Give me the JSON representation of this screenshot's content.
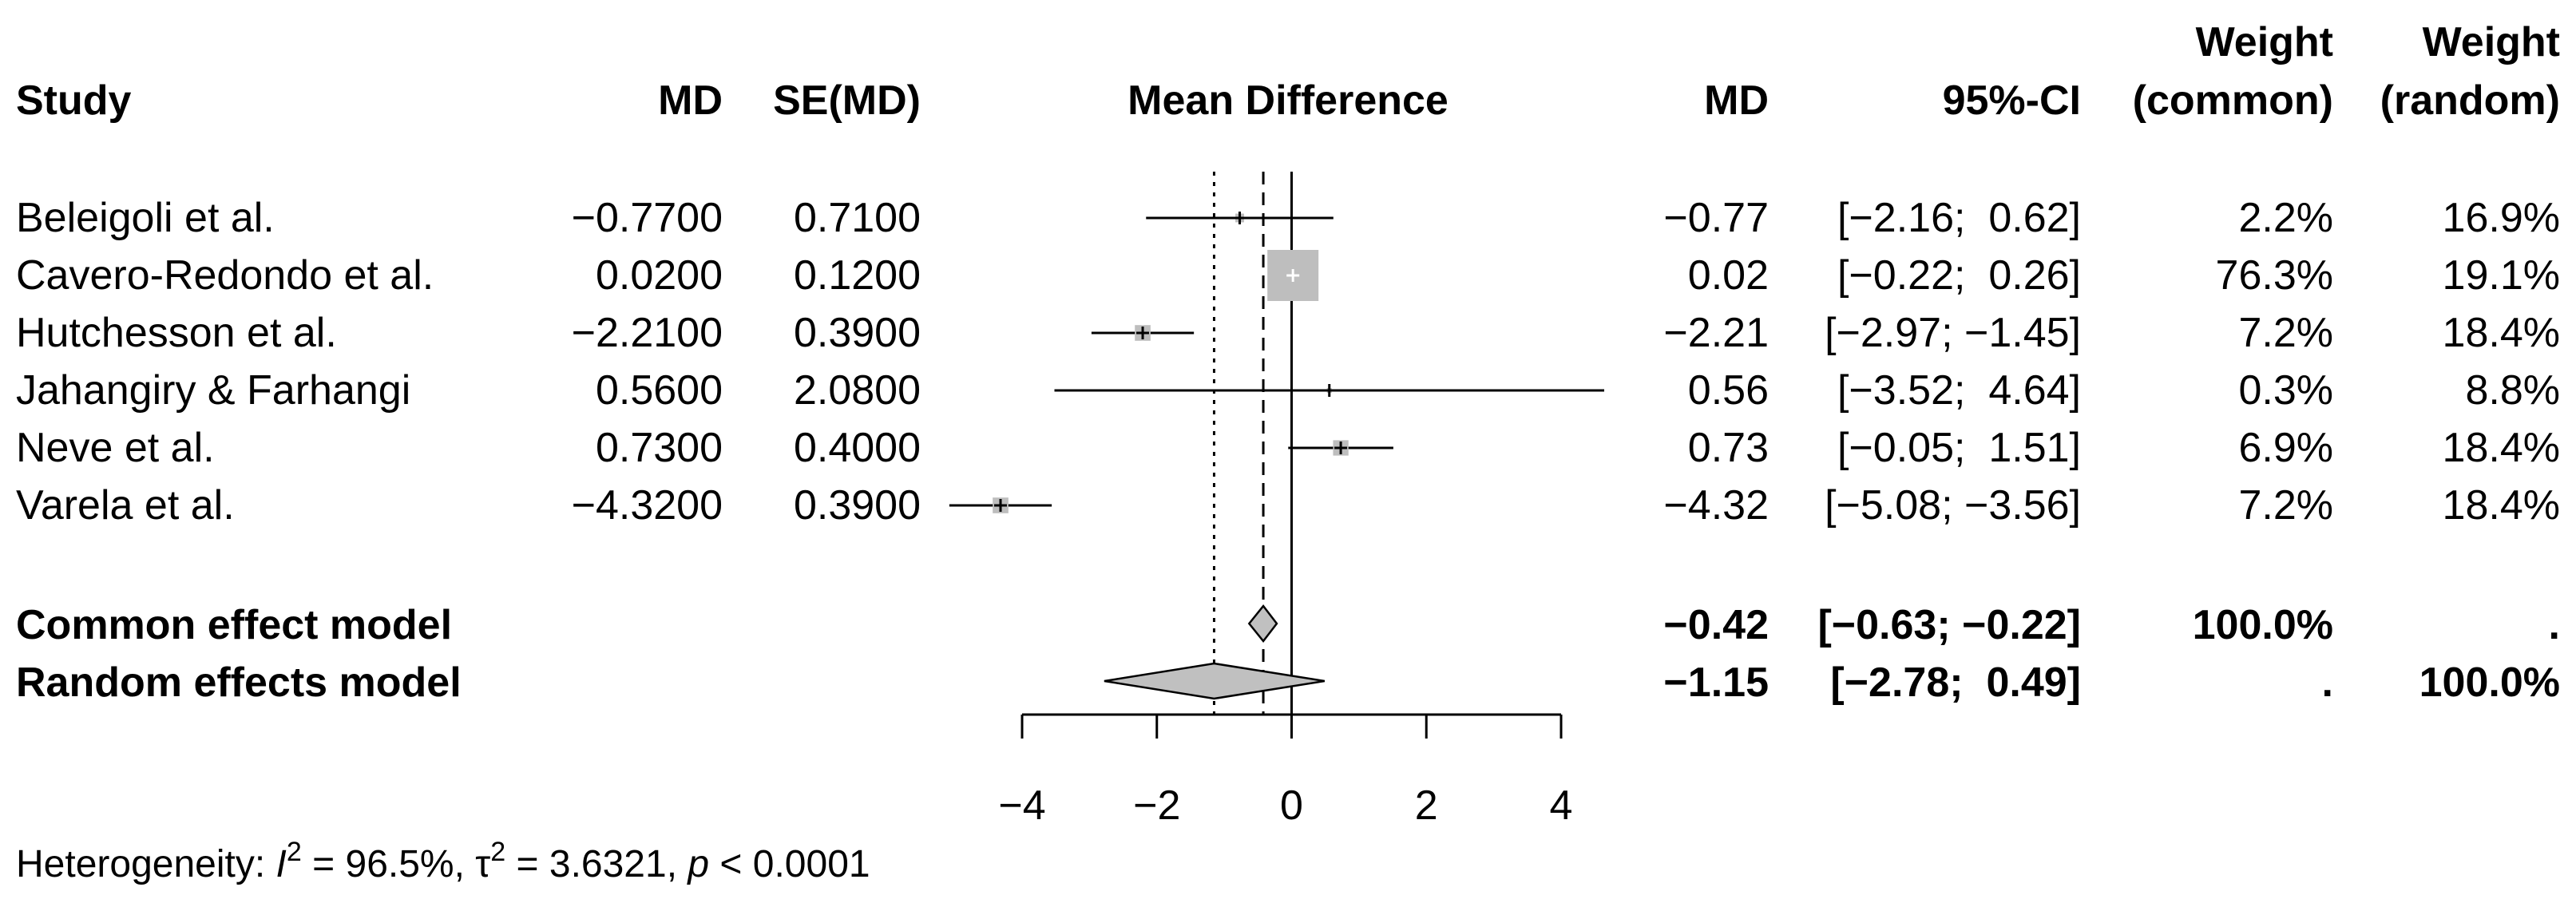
{
  "chart_data": {
    "type": "forest",
    "header": {
      "study": "Study",
      "md": "MD",
      "se_md": "SE(MD)",
      "plot_title": "Mean Difference",
      "md2": "MD",
      "ci": "95%-CI",
      "weight_common_1": "Weight",
      "weight_common_2": "(common)",
      "weight_random_1": "Weight",
      "weight_random_2": "(random)"
    },
    "studies": [
      {
        "study": "Beleigoli et al.",
        "md_text": "−0.7700",
        "se_text": "0.7100",
        "md_out": "−0.77",
        "ci_text": "[−2.16;  0.62]",
        "w_common": "2.2%",
        "w_random": "16.9%",
        "md": -0.77,
        "lower": -2.16,
        "upper": 0.62,
        "weight_common": 2.2
      },
      {
        "study": "Cavero-Redondo et al.",
        "md_text": "0.0200",
        "se_text": "0.1200",
        "md_out": "0.02",
        "ci_text": "[−0.22;  0.26]",
        "w_common": "76.3%",
        "w_random": "19.1%",
        "md": 0.02,
        "lower": -0.22,
        "upper": 0.26,
        "weight_common": 76.3
      },
      {
        "study": "Hutchesson et al.",
        "md_text": "−2.2100",
        "se_text": "0.3900",
        "md_out": "−2.21",
        "ci_text": "[−2.97; −1.45]",
        "w_common": "7.2%",
        "w_random": "18.4%",
        "md": -2.21,
        "lower": -2.97,
        "upper": -1.45,
        "weight_common": 7.2
      },
      {
        "study": "Jahangiry & Farhangi",
        "md_text": "0.5600",
        "se_text": "2.0800",
        "md_out": "0.56",
        "ci_text": "[−3.52;  4.64]",
        "w_common": "0.3%",
        "w_random": "8.8%",
        "md": 0.56,
        "lower": -3.52,
        "upper": 4.64,
        "weight_common": 0.3
      },
      {
        "study": "Neve et al.",
        "md_text": "0.7300",
        "se_text": "0.4000",
        "md_out": "0.73",
        "ci_text": "[−0.05;  1.51]",
        "w_common": "6.9%",
        "w_random": "18.4%",
        "md": 0.73,
        "lower": -0.05,
        "upper": 1.51,
        "weight_common": 6.9
      },
      {
        "study": "Varela et al.",
        "md_text": "−4.3200",
        "se_text": "0.3900",
        "md_out": "−4.32",
        "ci_text": "[−5.08; −3.56]",
        "w_common": "7.2%",
        "w_random": "18.4%",
        "md": -4.32,
        "lower": -5.08,
        "upper": -3.56,
        "weight_common": 7.2
      }
    ],
    "pooled": [
      {
        "label": "Common effect model",
        "md_out": "−0.42",
        "ci_text": "[−0.63; −0.22]",
        "w_common": "100.0%",
        "w_random": ".",
        "md": -0.42,
        "lower": -0.63,
        "upper": -0.22
      },
      {
        "label": "Random effects model",
        "md_out": "−1.15",
        "ci_text": "[−2.78;  0.49]",
        "w_common": ".",
        "w_random": "100.0%",
        "md": -1.15,
        "lower": -2.78,
        "upper": 0.49
      }
    ],
    "xlim": [
      -4,
      4
    ],
    "ticks": [
      -4,
      -2,
      0,
      2,
      4
    ],
    "tick_labels": [
      "−4",
      "−2",
      "0",
      "2",
      "4"
    ],
    "null_line": 0,
    "heterogeneity": {
      "prefix": "Heterogeneity: ",
      "i2_sym": "I",
      "i2_sup": "2",
      "i2_val": " = 96.5%, ",
      "tau_sym": "τ",
      "tau_sup": "2",
      "tau_val": " = 3.6321, ",
      "p_sym": "p",
      "p_val": " < 0.0001"
    },
    "colors": {
      "line": "#000000",
      "square": "#bebebe",
      "diamond": "#c0c0c0",
      "background": "#ffffff"
    }
  }
}
